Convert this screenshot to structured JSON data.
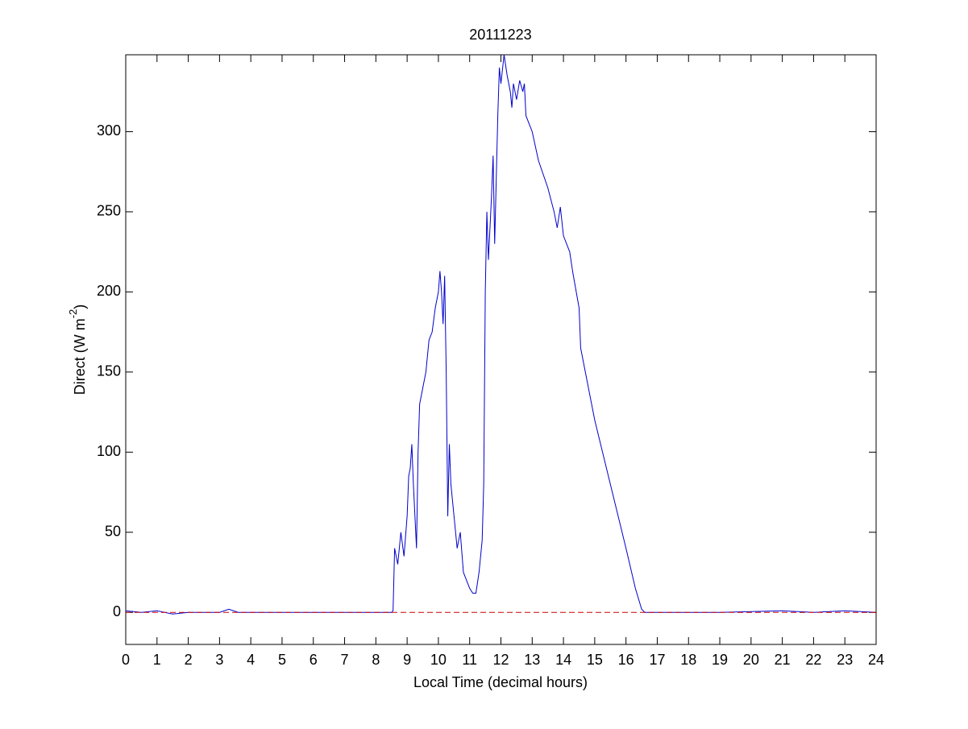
{
  "chart_data": {
    "type": "line",
    "title": "20111223",
    "xlabel": "Local Time (decimal hours)",
    "ylabel": [
      "Direct (W m",
      "-2",
      ")"
    ],
    "xlim": [
      0,
      24
    ],
    "xticks": [
      0,
      1,
      2,
      3,
      4,
      5,
      6,
      7,
      8,
      9,
      10,
      11,
      12,
      13,
      14,
      15,
      16,
      17,
      18,
      19,
      20,
      21,
      22,
      23,
      24
    ],
    "ylim": [
      -20,
      348
    ],
    "yticks": [
      0,
      50,
      100,
      150,
      200,
      250,
      300
    ],
    "series": [
      {
        "color": "#0000cc",
        "linestyle": "solid",
        "x": [
          0,
          0.5,
          1,
          1.5,
          2,
          2.5,
          3,
          3.3,
          3.6,
          4,
          5,
          6,
          7,
          8,
          8.5,
          8.55,
          8.6,
          8.7,
          8.8,
          8.9,
          9.0,
          9.05,
          9.1,
          9.15,
          9.2,
          9.25,
          9.3,
          9.35,
          9.4,
          9.5,
          9.6,
          9.7,
          9.8,
          9.9,
          10.0,
          10.05,
          10.1,
          10.15,
          10.2,
          10.25,
          10.3,
          10.35,
          10.4,
          10.5,
          10.6,
          10.7,
          10.8,
          10.9,
          11.0,
          11.1,
          11.2,
          11.3,
          11.4,
          11.45,
          11.5,
          11.55,
          11.6,
          11.7,
          11.75,
          11.8,
          11.9,
          11.95,
          12.0,
          12.1,
          12.2,
          12.3,
          12.35,
          12.4,
          12.5,
          12.6,
          12.7,
          12.75,
          12.8,
          13.0,
          13.2,
          13.5,
          13.7,
          13.8,
          13.9,
          14.0,
          14.2,
          14.3,
          14.5,
          14.55,
          14.7,
          15.0,
          15.5,
          16.0,
          16.3,
          16.5,
          16.6,
          17,
          18,
          19,
          20,
          21,
          22,
          23,
          24
        ],
        "values": [
          1,
          0,
          1,
          -1,
          0,
          0,
          0,
          2,
          0,
          0,
          0,
          0,
          0,
          0,
          0,
          1,
          40,
          30,
          50,
          35,
          60,
          85,
          90,
          105,
          80,
          60,
          40,
          100,
          130,
          140,
          150,
          170,
          175,
          190,
          200,
          213,
          200,
          180,
          210,
          150,
          60,
          105,
          80,
          60,
          40,
          50,
          25,
          20,
          15,
          12,
          12,
          25,
          45,
          80,
          200,
          250,
          220,
          260,
          285,
          230,
          310,
          340,
          330,
          348,
          335,
          325,
          315,
          330,
          320,
          332,
          325,
          330,
          310,
          300,
          282,
          265,
          250,
          240,
          253,
          235,
          225,
          212,
          190,
          165,
          150,
          120,
          80,
          40,
          15,
          2,
          0,
          0,
          0,
          0,
          0.5,
          1,
          0,
          1,
          0
        ]
      },
      {
        "color": "#cc0000",
        "linestyle": "dashed",
        "x": [
          0,
          24
        ],
        "values": [
          0,
          0
        ]
      }
    ]
  }
}
